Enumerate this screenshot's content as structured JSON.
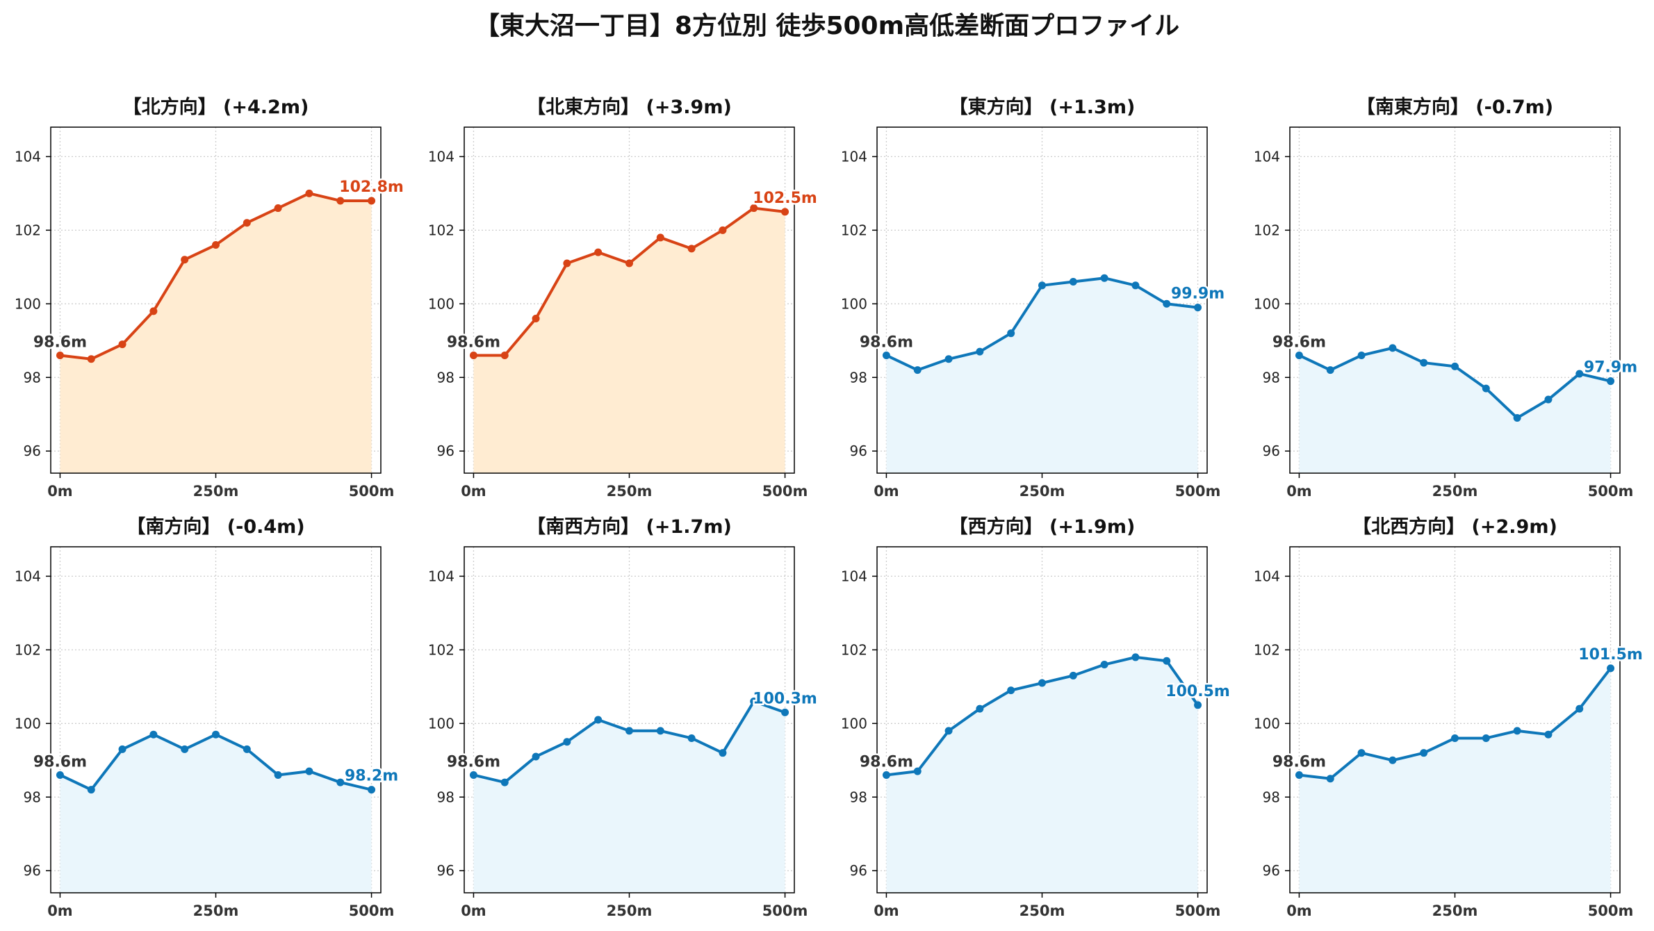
{
  "figure": {
    "title": "【東大沼一丁目】8方位別 徒歩500m高低差断面プロファイル"
  },
  "colors": {
    "up_line": "#d84315",
    "up_fill": "#ffecd2",
    "flat_line": "#0e77b9",
    "flat_fill": "#eaf6fc",
    "start_label": "#333333"
  },
  "chart_data": [
    {
      "type": "area",
      "title": "【北方向】 (+4.2m)",
      "trend": "up",
      "x": [
        0,
        50,
        100,
        150,
        200,
        250,
        300,
        350,
        400,
        450,
        500
      ],
      "y": [
        98.6,
        98.5,
        98.9,
        99.8,
        101.2,
        101.6,
        102.2,
        102.6,
        103.0,
        102.8,
        102.8
      ],
      "start_label": "98.6m",
      "end_label": "102.8m",
      "xticks": [
        "0m",
        "250m",
        "500m"
      ],
      "yticks": [
        "96",
        "98",
        "100",
        "102",
        "104"
      ],
      "xlim": [
        -15,
        515
      ],
      "ylim": [
        95.4,
        104.8
      ],
      "grid": true
    },
    {
      "type": "area",
      "title": "【北東方向】 (+3.9m)",
      "trend": "up",
      "x": [
        0,
        50,
        100,
        150,
        200,
        250,
        300,
        350,
        400,
        450,
        500
      ],
      "y": [
        98.6,
        98.6,
        99.6,
        101.1,
        101.4,
        101.1,
        101.8,
        101.5,
        102.0,
        102.6,
        102.5
      ],
      "start_label": "98.6m",
      "end_label": "102.5m",
      "xticks": [
        "0m",
        "250m",
        "500m"
      ],
      "yticks": [
        "96",
        "98",
        "100",
        "102",
        "104"
      ],
      "xlim": [
        -15,
        515
      ],
      "ylim": [
        95.4,
        104.8
      ],
      "grid": true
    },
    {
      "type": "area",
      "title": "【東方向】 (+1.3m)",
      "trend": "flat",
      "x": [
        0,
        50,
        100,
        150,
        200,
        250,
        300,
        350,
        400,
        450,
        500
      ],
      "y": [
        98.6,
        98.2,
        98.5,
        98.7,
        99.2,
        100.5,
        100.6,
        100.7,
        100.5,
        100.0,
        99.9
      ],
      "start_label": "98.6m",
      "end_label": "99.9m",
      "xticks": [
        "0m",
        "250m",
        "500m"
      ],
      "yticks": [
        "96",
        "98",
        "100",
        "102",
        "104"
      ],
      "xlim": [
        -15,
        515
      ],
      "ylim": [
        95.4,
        104.8
      ],
      "grid": true
    },
    {
      "type": "area",
      "title": "【南東方向】 (-0.7m)",
      "trend": "flat",
      "x": [
        0,
        50,
        100,
        150,
        200,
        250,
        300,
        350,
        400,
        450,
        500
      ],
      "y": [
        98.6,
        98.2,
        98.6,
        98.8,
        98.4,
        98.3,
        97.7,
        96.9,
        97.4,
        98.1,
        97.9
      ],
      "start_label": "98.6m",
      "end_label": "97.9m",
      "xticks": [
        "0m",
        "250m",
        "500m"
      ],
      "yticks": [
        "96",
        "98",
        "100",
        "102",
        "104"
      ],
      "xlim": [
        -15,
        515
      ],
      "ylim": [
        95.4,
        104.8
      ],
      "grid": true
    },
    {
      "type": "area",
      "title": "【南方向】 (-0.4m)",
      "trend": "flat",
      "x": [
        0,
        50,
        100,
        150,
        200,
        250,
        300,
        350,
        400,
        450,
        500
      ],
      "y": [
        98.6,
        98.2,
        99.3,
        99.7,
        99.3,
        99.7,
        99.3,
        98.6,
        98.7,
        98.4,
        98.2
      ],
      "start_label": "98.6m",
      "end_label": "98.2m",
      "xticks": [
        "0m",
        "250m",
        "500m"
      ],
      "yticks": [
        "96",
        "98",
        "100",
        "102",
        "104"
      ],
      "xlim": [
        -15,
        515
      ],
      "ylim": [
        95.4,
        104.8
      ],
      "grid": true
    },
    {
      "type": "area",
      "title": "【南西方向】 (+1.7m)",
      "trend": "flat",
      "x": [
        0,
        50,
        100,
        150,
        200,
        250,
        300,
        350,
        400,
        450,
        500
      ],
      "y": [
        98.6,
        98.4,
        99.1,
        99.5,
        100.1,
        99.8,
        99.8,
        99.6,
        99.2,
        100.6,
        100.3
      ],
      "start_label": "98.6m",
      "end_label": "100.3m",
      "xticks": [
        "0m",
        "250m",
        "500m"
      ],
      "yticks": [
        "96",
        "98",
        "100",
        "102",
        "104"
      ],
      "xlim": [
        -15,
        515
      ],
      "ylim": [
        95.4,
        104.8
      ],
      "grid": true
    },
    {
      "type": "area",
      "title": "【西方向】 (+1.9m)",
      "trend": "flat",
      "x": [
        0,
        50,
        100,
        150,
        200,
        250,
        300,
        350,
        400,
        450,
        500
      ],
      "y": [
        98.6,
        98.7,
        99.8,
        100.4,
        100.9,
        101.1,
        101.3,
        101.6,
        101.8,
        101.7,
        100.5
      ],
      "start_label": "98.6m",
      "end_label": "100.5m",
      "xticks": [
        "0m",
        "250m",
        "500m"
      ],
      "yticks": [
        "96",
        "98",
        "100",
        "102",
        "104"
      ],
      "xlim": [
        -15,
        515
      ],
      "ylim": [
        95.4,
        104.8
      ],
      "grid": true
    },
    {
      "type": "area",
      "title": "【北西方向】 (+2.9m)",
      "trend": "flat",
      "x": [
        0,
        50,
        100,
        150,
        200,
        250,
        300,
        350,
        400,
        450,
        500
      ],
      "y": [
        98.6,
        98.5,
        99.2,
        99.0,
        99.2,
        99.6,
        99.6,
        99.8,
        99.7,
        100.4,
        101.5
      ],
      "start_label": "98.6m",
      "end_label": "101.5m",
      "xticks": [
        "0m",
        "250m",
        "500m"
      ],
      "yticks": [
        "96",
        "98",
        "100",
        "102",
        "104"
      ],
      "xlim": [
        -15,
        515
      ],
      "ylim": [
        95.4,
        104.8
      ],
      "grid": true
    }
  ]
}
